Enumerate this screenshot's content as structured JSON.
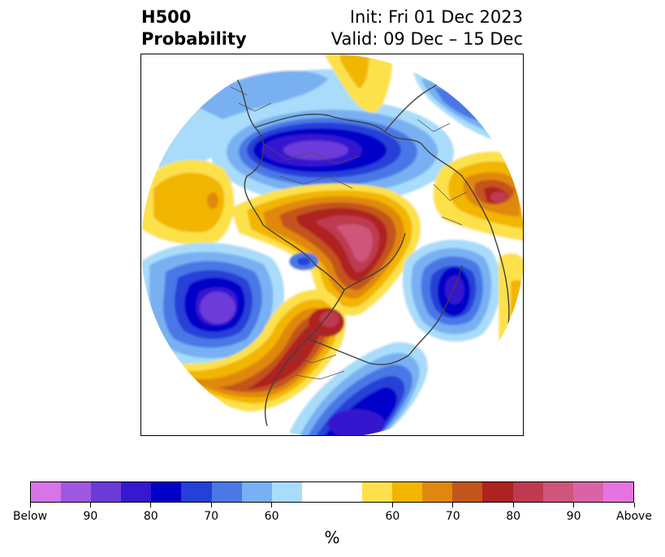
{
  "header": {
    "variable": "H500",
    "product": "Probability",
    "init": "Init: Fri 01 Dec 2023",
    "valid": "Valid: 09 Dec – 15 Dec"
  },
  "colorbar": {
    "unit": "%",
    "below_colors": [
      "#d674e8",
      "#9e57e0",
      "#6c3ad8",
      "#3518cf",
      "#0000c8",
      "#2540d8",
      "#4a78e6",
      "#78b0f2",
      "#a9dcfa"
    ],
    "neutral_color": "#ffffff",
    "above_colors": [
      "#fde14c",
      "#f2b500",
      "#e0880e",
      "#c3551a",
      "#ae2222",
      "#be3a50",
      "#cf557a",
      "#dc62a8",
      "#e674e0"
    ],
    "tick_labels": [
      "Below",
      "90",
      "80",
      "70",
      "60",
      "60",
      "70",
      "80",
      "90",
      "Above"
    ]
  }
}
